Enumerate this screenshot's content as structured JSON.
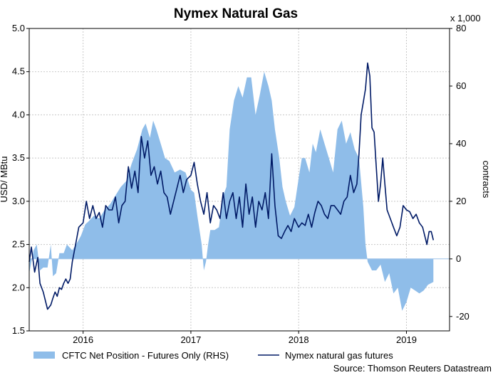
{
  "chart_data": {
    "type": "line",
    "title": "Nymex Natural Gas",
    "source": "Source: Thomson Reuters Datastream",
    "y_left": {
      "label": "USD/ MBtu",
      "lim": [
        1.5,
        5.0
      ],
      "ticks": [
        "1.5",
        "2.0",
        "2.5",
        "3.0",
        "3.5",
        "4.0",
        "4.5",
        "5.0"
      ]
    },
    "y_right": {
      "label": "contracts",
      "multiplier": "x 1,000",
      "lim": [
        -25,
        80
      ],
      "ticks": [
        "-20",
        "0",
        "20",
        "40",
        "60",
        "80"
      ]
    },
    "x": {
      "lim": [
        2015.5,
        2019.4
      ],
      "ticks": [
        {
          "label": "2016",
          "at": 2016.0
        },
        {
          "label": "2017",
          "at": 2017.0
        },
        {
          "label": "2018",
          "at": 2018.0
        },
        {
          "label": "2019",
          "at": 2019.0
        }
      ]
    },
    "grid": true,
    "legend_position": "bottom",
    "series": [
      {
        "name": "CFTC Net Position - Futures Only (RHS)",
        "type": "area",
        "axis": "right",
        "color": "#8fbde9",
        "points": [
          [
            2015.5,
            -5
          ],
          [
            2015.54,
            3
          ],
          [
            2015.57,
            5
          ],
          [
            2015.6,
            -4
          ],
          [
            2015.63,
            -3
          ],
          [
            2015.67,
            -3
          ],
          [
            2015.7,
            5
          ],
          [
            2015.72,
            -6
          ],
          [
            2015.75,
            -5
          ],
          [
            2015.78,
            2
          ],
          [
            2015.82,
            2
          ],
          [
            2015.85,
            5
          ],
          [
            2015.9,
            3
          ],
          [
            2015.95,
            6
          ],
          [
            2015.98,
            8
          ],
          [
            2016.02,
            12
          ],
          [
            2016.05,
            13
          ],
          [
            2016.1,
            15
          ],
          [
            2016.15,
            14
          ],
          [
            2016.2,
            17
          ],
          [
            2016.25,
            19
          ],
          [
            2016.3,
            22
          ],
          [
            2016.35,
            25
          ],
          [
            2016.4,
            27
          ],
          [
            2016.45,
            33
          ],
          [
            2016.5,
            38
          ],
          [
            2016.55,
            45
          ],
          [
            2016.58,
            47
          ],
          [
            2016.62,
            42
          ],
          [
            2016.65,
            48
          ],
          [
            2016.68,
            45
          ],
          [
            2016.72,
            40
          ],
          [
            2016.76,
            35
          ],
          [
            2016.8,
            34
          ],
          [
            2016.85,
            30
          ],
          [
            2016.9,
            31
          ],
          [
            2016.95,
            30
          ],
          [
            2017.0,
            24
          ],
          [
            2017.03,
            23
          ],
          [
            2017.06,
            15
          ],
          [
            2017.1,
            5
          ],
          [
            2017.12,
            -4
          ],
          [
            2017.14,
            -1
          ],
          [
            2017.16,
            5
          ],
          [
            2017.18,
            10
          ],
          [
            2017.22,
            10
          ],
          [
            2017.26,
            11
          ],
          [
            2017.3,
            22
          ],
          [
            2017.33,
            25
          ],
          [
            2017.36,
            45
          ],
          [
            2017.4,
            55
          ],
          [
            2017.44,
            60
          ],
          [
            2017.48,
            56
          ],
          [
            2017.52,
            63
          ],
          [
            2017.56,
            63
          ],
          [
            2017.6,
            50
          ],
          [
            2017.64,
            57
          ],
          [
            2017.68,
            65
          ],
          [
            2017.72,
            60
          ],
          [
            2017.75,
            55
          ],
          [
            2017.78,
            45
          ],
          [
            2017.82,
            35
          ],
          [
            2017.85,
            25
          ],
          [
            2017.88,
            20
          ],
          [
            2017.92,
            15
          ],
          [
            2017.96,
            18
          ],
          [
            2018.0,
            28
          ],
          [
            2018.03,
            35
          ],
          [
            2018.06,
            35
          ],
          [
            2018.1,
            30
          ],
          [
            2018.13,
            40
          ],
          [
            2018.16,
            37
          ],
          [
            2018.2,
            45
          ],
          [
            2018.24,
            40
          ],
          [
            2018.28,
            35
          ],
          [
            2018.32,
            30
          ],
          [
            2018.36,
            45
          ],
          [
            2018.4,
            48
          ],
          [
            2018.44,
            40
          ],
          [
            2018.48,
            44
          ],
          [
            2018.52,
            38
          ],
          [
            2018.56,
            35
          ],
          [
            2018.6,
            18
          ],
          [
            2018.62,
            5
          ],
          [
            2018.64,
            -1
          ],
          [
            2018.68,
            -4
          ],
          [
            2018.72,
            -4
          ],
          [
            2018.76,
            -2
          ],
          [
            2018.8,
            -8
          ],
          [
            2018.84,
            -5
          ],
          [
            2018.88,
            -12
          ],
          [
            2018.92,
            -10
          ],
          [
            2018.96,
            -18
          ],
          [
            2019.0,
            -15
          ],
          [
            2019.04,
            -10
          ],
          [
            2019.08,
            -11
          ],
          [
            2019.12,
            -12
          ],
          [
            2019.16,
            -11
          ],
          [
            2019.2,
            -9
          ],
          [
            2019.25,
            -8
          ]
        ]
      },
      {
        "name": "Nymex natural gas futures",
        "type": "line",
        "axis": "left",
        "color": "#001a66",
        "points": [
          [
            2015.5,
            2.3
          ],
          [
            2015.52,
            2.47
          ],
          [
            2015.55,
            2.18
          ],
          [
            2015.58,
            2.35
          ],
          [
            2015.6,
            2.05
          ],
          [
            2015.63,
            1.95
          ],
          [
            2015.65,
            1.85
          ],
          [
            2015.67,
            1.75
          ],
          [
            2015.7,
            1.8
          ],
          [
            2015.72,
            1.88
          ],
          [
            2015.74,
            1.95
          ],
          [
            2015.76,
            1.9
          ],
          [
            2015.78,
            2.0
          ],
          [
            2015.8,
            1.98
          ],
          [
            2015.82,
            2.05
          ],
          [
            2015.84,
            2.1
          ],
          [
            2015.86,
            2.05
          ],
          [
            2015.88,
            2.1
          ],
          [
            2015.9,
            2.3
          ],
          [
            2015.93,
            2.5
          ],
          [
            2015.96,
            2.7
          ],
          [
            2016.0,
            2.75
          ],
          [
            2016.03,
            3.0
          ],
          [
            2016.06,
            2.8
          ],
          [
            2016.09,
            2.95
          ],
          [
            2016.12,
            2.8
          ],
          [
            2016.15,
            2.87
          ],
          [
            2016.18,
            2.7
          ],
          [
            2016.21,
            2.95
          ],
          [
            2016.24,
            2.9
          ],
          [
            2016.27,
            2.9
          ],
          [
            2016.3,
            3.05
          ],
          [
            2016.33,
            2.75
          ],
          [
            2016.36,
            2.95
          ],
          [
            2016.39,
            3.0
          ],
          [
            2016.42,
            3.4
          ],
          [
            2016.45,
            3.15
          ],
          [
            2016.48,
            3.35
          ],
          [
            2016.51,
            3.1
          ],
          [
            2016.54,
            3.75
          ],
          [
            2016.57,
            3.5
          ],
          [
            2016.6,
            3.7
          ],
          [
            2016.63,
            3.3
          ],
          [
            2016.66,
            3.4
          ],
          [
            2016.69,
            3.2
          ],
          [
            2016.72,
            3.35
          ],
          [
            2016.75,
            3.1
          ],
          [
            2016.78,
            3.05
          ],
          [
            2016.81,
            2.85
          ],
          [
            2016.84,
            3.0
          ],
          [
            2016.87,
            3.15
          ],
          [
            2016.9,
            3.3
          ],
          [
            2016.93,
            3.1
          ],
          [
            2016.96,
            3.25
          ],
          [
            2017.0,
            3.3
          ],
          [
            2017.03,
            3.45
          ],
          [
            2017.06,
            3.2
          ],
          [
            2017.09,
            3.0
          ],
          [
            2017.12,
            2.85
          ],
          [
            2017.15,
            3.1
          ],
          [
            2017.18,
            2.75
          ],
          [
            2017.21,
            2.95
          ],
          [
            2017.24,
            2.9
          ],
          [
            2017.27,
            2.8
          ],
          [
            2017.3,
            3.1
          ],
          [
            2017.33,
            2.8
          ],
          [
            2017.36,
            3.0
          ],
          [
            2017.39,
            3.1
          ],
          [
            2017.42,
            2.8
          ],
          [
            2017.45,
            3.05
          ],
          [
            2017.48,
            2.7
          ],
          [
            2017.51,
            3.2
          ],
          [
            2017.54,
            2.85
          ],
          [
            2017.57,
            3.05
          ],
          [
            2017.6,
            2.7
          ],
          [
            2017.63,
            3.0
          ],
          [
            2017.66,
            2.9
          ],
          [
            2017.69,
            3.1
          ],
          [
            2017.72,
            2.8
          ],
          [
            2017.75,
            3.55
          ],
          [
            2017.78,
            2.95
          ],
          [
            2017.81,
            2.6
          ],
          [
            2017.84,
            2.57
          ],
          [
            2017.87,
            2.65
          ],
          [
            2017.9,
            2.72
          ],
          [
            2017.93,
            2.65
          ],
          [
            2017.96,
            2.8
          ],
          [
            2018.0,
            2.7
          ],
          [
            2018.03,
            2.75
          ],
          [
            2018.06,
            2.72
          ],
          [
            2018.09,
            2.85
          ],
          [
            2018.12,
            2.7
          ],
          [
            2018.15,
            2.87
          ],
          [
            2018.18,
            3.0
          ],
          [
            2018.21,
            2.95
          ],
          [
            2018.24,
            2.85
          ],
          [
            2018.27,
            2.8
          ],
          [
            2018.3,
            2.95
          ],
          [
            2018.33,
            2.95
          ],
          [
            2018.36,
            2.9
          ],
          [
            2018.39,
            2.85
          ],
          [
            2018.42,
            3.0
          ],
          [
            2018.45,
            3.05
          ],
          [
            2018.48,
            3.3
          ],
          [
            2018.51,
            3.1
          ],
          [
            2018.54,
            3.2
          ],
          [
            2018.56,
            3.55
          ],
          [
            2018.58,
            4.0
          ],
          [
            2018.6,
            4.15
          ],
          [
            2018.62,
            4.3
          ],
          [
            2018.64,
            4.6
          ],
          [
            2018.66,
            4.45
          ],
          [
            2018.68,
            3.85
          ],
          [
            2018.7,
            3.8
          ],
          [
            2018.72,
            3.4
          ],
          [
            2018.74,
            3.0
          ],
          [
            2018.76,
            3.2
          ],
          [
            2018.78,
            3.5
          ],
          [
            2018.8,
            3.2
          ],
          [
            2018.82,
            2.9
          ],
          [
            2018.85,
            2.8
          ],
          [
            2018.88,
            2.7
          ],
          [
            2018.91,
            2.6
          ],
          [
            2018.94,
            2.7
          ],
          [
            2018.97,
            2.95
          ],
          [
            2019.0,
            2.9
          ],
          [
            2019.03,
            2.88
          ],
          [
            2019.06,
            2.8
          ],
          [
            2019.09,
            2.85
          ],
          [
            2019.12,
            2.75
          ],
          [
            2019.15,
            2.7
          ],
          [
            2019.17,
            2.6
          ],
          [
            2019.19,
            2.5
          ],
          [
            2019.21,
            2.65
          ],
          [
            2019.23,
            2.65
          ],
          [
            2019.25,
            2.55
          ]
        ]
      }
    ]
  }
}
